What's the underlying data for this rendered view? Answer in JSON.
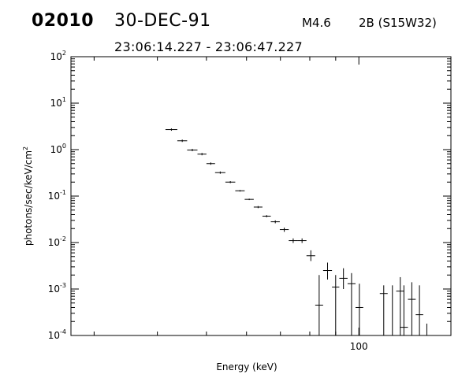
{
  "header": {
    "event_id": "02010",
    "date": "30-DEC-91",
    "goes_class": "M4.6",
    "flare_info": "2B (S15W32)",
    "time_range": "23:06:14.227 - 23:06:47.227"
  },
  "chart_data": {
    "type": "scatter",
    "title": "",
    "xlabel": "Energy (keV)",
    "ylabel": "photons/sec/keV/cm",
    "ylabel_sup": "2",
    "xscale": "log",
    "yscale": "log",
    "xlim": [
      27,
      152
    ],
    "ylim": [
      0.0001,
      100
    ],
    "x_ticks": [
      {
        "value": 100,
        "label": "100"
      }
    ],
    "y_ticks": [
      {
        "value": 100,
        "base": "10",
        "exp": "2"
      },
      {
        "value": 10,
        "base": "10",
        "exp": "1"
      },
      {
        "value": 1,
        "base": "10",
        "exp": "0"
      },
      {
        "value": 0.1,
        "base": "10",
        "exp": "-1"
      },
      {
        "value": 0.01,
        "base": "10",
        "exp": "-2"
      },
      {
        "value": 0.001,
        "base": "10",
        "exp": "-3"
      },
      {
        "value": 0.0001,
        "base": "10",
        "exp": "-4"
      }
    ],
    "grid": false,
    "points": [
      {
        "x_lo": 41.5,
        "x_hi": 43.8,
        "y": 2.7,
        "y_lo": 2.7,
        "y_hi": 2.7
      },
      {
        "x_lo": 43.8,
        "x_hi": 45.8,
        "y": 1.55,
        "y_lo": 1.55,
        "y_hi": 1.55
      },
      {
        "x_lo": 45.8,
        "x_hi": 48.0,
        "y": 0.98,
        "y_lo": 0.98,
        "y_hi": 0.98
      },
      {
        "x_lo": 48.0,
        "x_hi": 50.0,
        "y": 0.8,
        "y_lo": 0.8,
        "y_hi": 0.8
      },
      {
        "x_lo": 50.0,
        "x_hi": 52.0,
        "y": 0.5,
        "y_lo": 0.5,
        "y_hi": 0.5
      },
      {
        "x_lo": 52.0,
        "x_hi": 54.5,
        "y": 0.32,
        "y_lo": 0.32,
        "y_hi": 0.32
      },
      {
        "x_lo": 54.5,
        "x_hi": 57.0,
        "y": 0.2,
        "y_lo": 0.19,
        "y_hi": 0.21
      },
      {
        "x_lo": 57.0,
        "x_hi": 59.5,
        "y": 0.13,
        "y_lo": 0.125,
        "y_hi": 0.135
      },
      {
        "x_lo": 59.5,
        "x_hi": 62.0,
        "y": 0.085,
        "y_lo": 0.082,
        "y_hi": 0.088
      },
      {
        "x_lo": 62.0,
        "x_hi": 64.5,
        "y": 0.058,
        "y_lo": 0.055,
        "y_hi": 0.061
      },
      {
        "x_lo": 64.5,
        "x_hi": 67.0,
        "y": 0.037,
        "y_lo": 0.035,
        "y_hi": 0.039
      },
      {
        "x_lo": 67.0,
        "x_hi": 69.8,
        "y": 0.028,
        "y_lo": 0.026,
        "y_hi": 0.03
      },
      {
        "x_lo": 69.8,
        "x_hi": 72.7,
        "y": 0.019,
        "y_lo": 0.017,
        "y_hi": 0.021
      },
      {
        "x_lo": 72.7,
        "x_hi": 75.7,
        "y": 0.011,
        "y_lo": 0.0098,
        "y_hi": 0.0123
      },
      {
        "x_lo": 75.7,
        "x_hi": 78.8,
        "y": 0.011,
        "y_lo": 0.0098,
        "y_hi": 0.0123
      },
      {
        "x_lo": 78.8,
        "x_hi": 82.0,
        "y": 0.0052,
        "y_lo": 0.004,
        "y_hi": 0.0068
      },
      {
        "x_lo": 82.0,
        "x_hi": 85.0,
        "y": 0.00045,
        "y_lo": 0.0001,
        "y_hi": 0.002
      },
      {
        "x_lo": 85.0,
        "x_hi": 88.5,
        "y": 0.0025,
        "y_lo": 0.0016,
        "y_hi": 0.0037
      },
      {
        "x_lo": 88.5,
        "x_hi": 91.5,
        "y": 0.0011,
        "y_lo": 0.0001,
        "y_hi": 0.002
      },
      {
        "x_lo": 91.5,
        "x_hi": 95.0,
        "y": 0.0017,
        "y_lo": 0.001,
        "y_hi": 0.0028
      },
      {
        "x_lo": 95.0,
        "x_hi": 98.5,
        "y": 0.0013,
        "y_lo": 0.0001,
        "y_hi": 0.0022
      },
      {
        "x_lo": 98.5,
        "x_hi": 102.0,
        "y": 0.0004,
        "y_lo": 0.0001,
        "y_hi": 0.0013
      },
      {
        "x_lo": 110.0,
        "x_hi": 114.0,
        "y": 0.0008,
        "y_lo": 0.0001,
        "y_hi": 0.0012
      },
      {
        "x_lo": 114.5,
        "x_hi": 118.5,
        "y": 0.0001,
        "y_lo": 0.0001,
        "y_hi": 0.0012
      },
      {
        "x_lo": 118.5,
        "x_hi": 123.0,
        "y": 0.0009,
        "y_lo": 0.0001,
        "y_hi": 0.0018
      },
      {
        "x_lo": 120.5,
        "x_hi": 125.0,
        "y": 0.00015,
        "y_lo": 0.0001,
        "y_hi": 0.0012
      },
      {
        "x_lo": 125.0,
        "x_hi": 129.5,
        "y": 0.0006,
        "y_lo": 0.0001,
        "y_hi": 0.0014
      },
      {
        "x_lo": 129.5,
        "x_hi": 134.0,
        "y": 0.00028,
        "y_lo": 0.0001,
        "y_hi": 0.0012
      },
      {
        "x_lo": 134.0,
        "x_hi": 138.5,
        "y": 0.0001,
        "y_lo": 0.0001,
        "y_hi": 0.00018
      }
    ]
  }
}
